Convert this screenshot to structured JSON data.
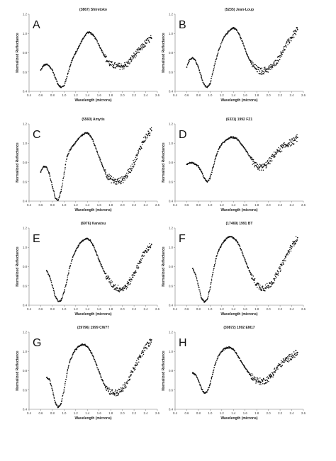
{
  "chart_data": [
    {
      "type": "scatter",
      "panel_label": "A",
      "title": "(3867) Shiretoko",
      "xlabel": "Wavelength (microns)",
      "ylabel": "Normalized Reflectance",
      "xlim": [
        0.4,
        2.6
      ],
      "ylim": [
        0.4,
        1.2
      ],
      "xticks": [
        "0.4",
        "0.6",
        "0.8",
        "1.0",
        "1.2",
        "1.4",
        "1.6",
        "1.8",
        "2.0",
        "2.2",
        "2.4",
        "2.6"
      ],
      "yticks": [
        "0.4",
        "0.6",
        "0.8",
        "1.0",
        "1.2"
      ],
      "x": [
        0.6,
        0.65,
        0.7,
        0.75,
        0.8,
        0.85,
        0.9,
        0.95,
        1.0,
        1.05,
        1.1,
        1.15,
        1.2,
        1.25,
        1.3,
        1.35,
        1.4,
        1.45,
        1.5,
        1.55,
        1.6,
        1.65,
        1.7,
        1.75,
        1.8,
        1.85,
        1.9,
        1.95,
        2.0,
        2.05,
        2.1,
        2.15,
        2.2,
        2.25,
        2.3,
        2.35,
        2.4,
        2.45,
        2.5
      ],
      "y": [
        0.62,
        0.67,
        0.68,
        0.66,
        0.62,
        0.54,
        0.47,
        0.44,
        0.46,
        0.55,
        0.66,
        0.74,
        0.8,
        0.86,
        0.92,
        0.97,
        1.01,
        1.01,
        0.98,
        0.94,
        0.88,
        0.82,
        0.76,
        0.71,
        0.68,
        0.67,
        0.66,
        0.66,
        0.66,
        0.67,
        0.69,
        0.73,
        0.77,
        0.8,
        0.83,
        0.87,
        0.9,
        0.93,
        0.95
      ]
    },
    {
      "type": "scatter",
      "panel_label": "B",
      "title": "(5235) Jean-Loup",
      "xlabel": "Wavelength (microns)",
      "ylabel": "Normalized Reflectance",
      "xlim": [
        0.4,
        2.6
      ],
      "ylim": [
        0.4,
        1.2
      ],
      "xticks": [
        "0.4",
        "0.6",
        "0.8",
        "1.0",
        "1.2",
        "1.4",
        "1.6",
        "1.8",
        "2.0",
        "2.2",
        "2.4",
        "2.6"
      ],
      "yticks": [
        "0.4",
        "0.6",
        "0.8",
        "1.0",
        "1.2"
      ],
      "x": [
        0.6,
        0.65,
        0.7,
        0.75,
        0.8,
        0.85,
        0.9,
        0.95,
        1.0,
        1.05,
        1.1,
        1.15,
        1.2,
        1.25,
        1.3,
        1.35,
        1.4,
        1.45,
        1.5,
        1.55,
        1.6,
        1.65,
        1.7,
        1.75,
        1.8,
        1.85,
        1.9,
        1.95,
        2.0,
        2.05,
        2.1,
        2.15,
        2.2,
        2.25,
        2.3,
        2.35,
        2.4,
        2.45,
        2.5
      ],
      "y": [
        0.65,
        0.73,
        0.75,
        0.72,
        0.65,
        0.55,
        0.47,
        0.44,
        0.48,
        0.6,
        0.73,
        0.83,
        0.91,
        0.97,
        1.01,
        1.04,
        1.06,
        1.04,
        0.99,
        0.92,
        0.84,
        0.76,
        0.7,
        0.66,
        0.63,
        0.61,
        0.61,
        0.62,
        0.63,
        0.65,
        0.68,
        0.72,
        0.77,
        0.82,
        0.87,
        0.92,
        0.96,
        1.0,
        1.04
      ]
    },
    {
      "type": "scatter",
      "panel_label": "C",
      "title": "(5560) Amytis",
      "xlabel": "Wavelength (microns)",
      "ylabel": "Normalized Reflectance",
      "xlim": [
        0.4,
        2.6
      ],
      "ylim": [
        0.4,
        1.2
      ],
      "xticks": [
        "0.4",
        "0.6",
        "0.8",
        "1.0",
        "1.2",
        "1.4",
        "1.6",
        "1.8",
        "2.0",
        "2.2",
        "2.4",
        "2.6"
      ],
      "yticks": [
        "0.4",
        "0.6",
        "0.8",
        "1.0",
        "1.2"
      ],
      "x": [
        0.6,
        0.65,
        0.7,
        0.75,
        0.8,
        0.85,
        0.9,
        0.95,
        1.0,
        1.05,
        1.1,
        1.15,
        1.2,
        1.25,
        1.3,
        1.35,
        1.4,
        1.45,
        1.5,
        1.55,
        1.6,
        1.65,
        1.7,
        1.75,
        1.8,
        1.85,
        1.9,
        1.95,
        2.0,
        2.05,
        2.1,
        2.15,
        2.2,
        2.25,
        2.3,
        2.35,
        2.4,
        2.45,
        2.5
      ],
      "y": [
        0.7,
        0.76,
        0.75,
        0.68,
        0.55,
        0.43,
        0.41,
        0.5,
        0.68,
        0.86,
        0.93,
        0.97,
        1.01,
        1.05,
        1.08,
        1.1,
        1.11,
        1.08,
        1.02,
        0.94,
        0.86,
        0.78,
        0.71,
        0.66,
        0.63,
        0.61,
        0.6,
        0.61,
        0.62,
        0.65,
        0.69,
        0.74,
        0.8,
        0.87,
        0.94,
        1.01,
        1.06,
        1.1,
        1.13
      ]
    },
    {
      "type": "scatter",
      "panel_label": "D",
      "title": "(6331) 1992 FZ1",
      "xlabel": "Wavelength (microns)",
      "ylabel": "Normalized Reflectance",
      "xlim": [
        0.4,
        2.6
      ],
      "ylim": [
        0.4,
        1.2
      ],
      "xticks": [
        "0.4",
        "0.6",
        "0.8",
        "1.0",
        "1.2",
        "1.4",
        "1.6",
        "1.8",
        "2.0",
        "2.2",
        "2.4",
        "2.6"
      ],
      "yticks": [
        "0.4",
        "0.6",
        "0.8",
        "1.0",
        "1.2"
      ],
      "x": [
        0.6,
        0.65,
        0.7,
        0.75,
        0.8,
        0.85,
        0.9,
        0.95,
        1.0,
        1.05,
        1.1,
        1.15,
        1.2,
        1.25,
        1.3,
        1.35,
        1.4,
        1.45,
        1.5,
        1.55,
        1.6,
        1.65,
        1.7,
        1.75,
        1.8,
        1.85,
        1.9,
        1.95,
        2.0,
        2.05,
        2.1,
        2.15,
        2.2,
        2.25,
        2.3,
        2.35,
        2.4,
        2.45,
        2.5
      ],
      "y": [
        0.78,
        0.8,
        0.8,
        0.78,
        0.76,
        0.71,
        0.64,
        0.6,
        0.64,
        0.75,
        0.86,
        0.94,
        0.99,
        1.02,
        1.04,
        1.06,
        1.06,
        1.05,
        1.02,
        0.98,
        0.94,
        0.89,
        0.84,
        0.79,
        0.76,
        0.75,
        0.75,
        0.77,
        0.8,
        0.84,
        0.88,
        0.91,
        0.94,
        0.96,
        0.98,
        1.0,
        1.01,
        1.03,
        1.06
      ]
    },
    {
      "type": "scatter",
      "panel_label": "E",
      "title": "(6976) Kanatsu",
      "xlabel": "Wavelength (microns)",
      "ylabel": "Normalized Reflectance",
      "xlim": [
        0.4,
        2.6
      ],
      "ylim": [
        0.4,
        1.2
      ],
      "xticks": [
        "0.4",
        "0.6",
        "0.8",
        "1.0",
        "1.2",
        "1.4",
        "1.6",
        "1.8",
        "2.0",
        "2.2",
        "2.4",
        "2.6"
      ],
      "yticks": [
        "0.4",
        "0.6",
        "0.8",
        "1.0",
        "1.2"
      ],
      "x": [
        0.7,
        0.75,
        0.8,
        0.85,
        0.9,
        0.95,
        1.0,
        1.05,
        1.1,
        1.15,
        1.2,
        1.25,
        1.3,
        1.35,
        1.4,
        1.45,
        1.5,
        1.55,
        1.6,
        1.65,
        1.7,
        1.75,
        1.8,
        1.85,
        1.9,
        1.95,
        2.0,
        2.05,
        2.1,
        2.15,
        2.2,
        2.25,
        2.3,
        2.35,
        2.4,
        2.45,
        2.5
      ],
      "y": [
        0.76,
        0.7,
        0.6,
        0.49,
        0.44,
        0.45,
        0.53,
        0.66,
        0.8,
        0.9,
        0.97,
        1.02,
        1.06,
        1.08,
        1.09,
        1.07,
        1.02,
        0.95,
        0.87,
        0.8,
        0.73,
        0.68,
        0.63,
        0.6,
        0.58,
        0.57,
        0.57,
        0.59,
        0.62,
        0.67,
        0.73,
        0.79,
        0.85,
        0.91,
        0.96,
        1.0,
        1.03
      ]
    },
    {
      "type": "scatter",
      "panel_label": "F",
      "title": "(17469) 1991 BT",
      "xlabel": "Wavelength (microns)",
      "ylabel": "Normalized Reflectance",
      "xlim": [
        0.4,
        2.6
      ],
      "ylim": [
        0.4,
        1.2
      ],
      "xticks": [
        "0.4",
        "0.6",
        "0.8",
        "1.0",
        "1.2",
        "1.4",
        "1.6",
        "1.8",
        "2.0",
        "2.2",
        "2.4",
        "2.6"
      ],
      "yticks": [
        "0.4",
        "0.6",
        "0.8",
        "1.0",
        "1.2"
      ],
      "x": [
        0.7,
        0.75,
        0.8,
        0.85,
        0.9,
        0.95,
        1.0,
        1.05,
        1.1,
        1.15,
        1.2,
        1.25,
        1.3,
        1.35,
        1.4,
        1.45,
        1.5,
        1.55,
        1.6,
        1.65,
        1.7,
        1.75,
        1.8,
        1.85,
        1.9,
        1.95,
        2.0,
        2.05,
        2.1,
        2.15,
        2.2,
        2.25,
        2.3,
        2.35,
        2.4,
        2.45,
        2.5
      ],
      "y": [
        0.78,
        0.72,
        0.6,
        0.48,
        0.43,
        0.46,
        0.58,
        0.74,
        0.88,
        0.97,
        1.03,
        1.07,
        1.1,
        1.11,
        1.1,
        1.07,
        1.02,
        0.95,
        0.87,
        0.79,
        0.72,
        0.66,
        0.62,
        0.59,
        0.58,
        0.58,
        0.6,
        0.63,
        0.67,
        0.72,
        0.78,
        0.84,
        0.9,
        0.96,
        1.01,
        1.06,
        1.1
      ]
    },
    {
      "type": "scatter",
      "panel_label": "G",
      "title": "(29796) 1999 CW77",
      "xlabel": "Wavelength (microns)",
      "ylabel": "Normalized Reflectance",
      "xlim": [
        0.4,
        2.6
      ],
      "ylim": [
        0.4,
        1.2
      ],
      "xticks": [
        "0.4",
        "0.6",
        "0.8",
        "1.0",
        "1.2",
        "1.4",
        "1.6",
        "1.8",
        "2.0",
        "2.2",
        "2.4",
        "2.6"
      ],
      "yticks": [
        "0.4",
        "0.6",
        "0.8",
        "1.0",
        "1.2"
      ],
      "x": [
        0.7,
        0.75,
        0.8,
        0.85,
        0.9,
        0.95,
        1.0,
        1.05,
        1.1,
        1.15,
        1.2,
        1.25,
        1.3,
        1.35,
        1.4,
        1.45,
        1.5,
        1.55,
        1.6,
        1.65,
        1.7,
        1.75,
        1.8,
        1.85,
        1.9,
        1.95,
        2.0,
        2.05,
        2.1,
        2.15,
        2.2,
        2.25,
        2.3,
        2.35,
        2.4,
        2.45,
        2.5
      ],
      "y": [
        0.73,
        0.71,
        0.6,
        0.47,
        0.42,
        0.46,
        0.6,
        0.77,
        0.9,
        0.97,
        1.02,
        1.05,
        1.07,
        1.07,
        1.05,
        1.01,
        0.95,
        0.87,
        0.79,
        0.71,
        0.65,
        0.61,
        0.58,
        0.57,
        0.57,
        0.58,
        0.61,
        0.65,
        0.7,
        0.76,
        0.82,
        0.88,
        0.94,
        0.99,
        1.04,
        1.08,
        1.12
      ]
    },
    {
      "type": "scatter",
      "panel_label": "H",
      "title": "(30872) 1992 EM17",
      "xlabel": "Wavelength (microns)",
      "ylabel": "Normalized Reflectance",
      "xlim": [
        0.4,
        2.6
      ],
      "ylim": [
        0.4,
        1.2
      ],
      "xticks": [
        "0.4",
        "0.6",
        "0.8",
        "1.0",
        "1.2",
        "1.4",
        "1.6",
        "1.8",
        "2.0",
        "2.2",
        "2.4",
        "2.6"
      ],
      "yticks": [
        "0.4",
        "0.6",
        "0.8",
        "1.0",
        "1.2"
      ],
      "x": [
        0.7,
        0.75,
        0.8,
        0.85,
        0.9,
        0.95,
        1.0,
        1.05,
        1.1,
        1.15,
        1.2,
        1.25,
        1.3,
        1.35,
        1.4,
        1.45,
        1.5,
        1.55,
        1.6,
        1.65,
        1.7,
        1.75,
        1.8,
        1.85,
        1.9,
        1.95,
        2.0,
        2.05,
        2.1,
        2.15,
        2.2,
        2.25,
        2.3,
        2.35,
        2.4,
        2.45,
        2.5
      ],
      "y": [
        0.78,
        0.76,
        0.7,
        0.62,
        0.57,
        0.58,
        0.66,
        0.78,
        0.89,
        0.96,
        1.0,
        1.03,
        1.04,
        1.04,
        1.02,
        0.98,
        0.93,
        0.88,
        0.83,
        0.79,
        0.75,
        0.72,
        0.7,
        0.69,
        0.69,
        0.7,
        0.72,
        0.75,
        0.79,
        0.83,
        0.86,
        0.89,
        0.91,
        0.93,
        0.95,
        0.97,
        0.99
      ]
    }
  ]
}
